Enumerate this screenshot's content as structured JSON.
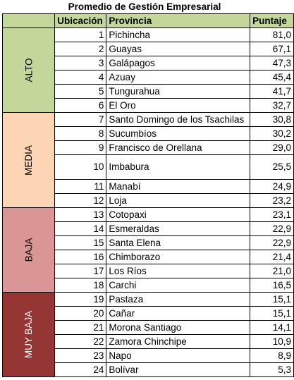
{
  "title": "Promedio de Gestión Empresarial",
  "headers": {
    "ubicacion": "Ubicación",
    "provincia": "Provincia",
    "puntaje": "Puntaje"
  },
  "groups": {
    "alto": "ALTO",
    "media": "MEDIA",
    "baja": "BAJA",
    "muy_baja": "MUY BAJA"
  },
  "colors": {
    "header": "#c4d79b",
    "alto": "#c4d79b",
    "media": "#fcd5b4",
    "baja": "#da9694",
    "muy_baja": "#963634"
  },
  "rows": [
    {
      "rank": "1",
      "provincia": "Pichincha",
      "puntaje": "81,0"
    },
    {
      "rank": "2",
      "provincia": "Guayas",
      "puntaje": "67,1"
    },
    {
      "rank": "3",
      "provincia": "Galápagos",
      "puntaje": "47,3"
    },
    {
      "rank": "4",
      "provincia": "Azuay",
      "puntaje": "45,4"
    },
    {
      "rank": "5",
      "provincia": "Tungurahua",
      "puntaje": "41,7"
    },
    {
      "rank": "6",
      "provincia": "El Oro",
      "puntaje": "32,7"
    },
    {
      "rank": "7",
      "provincia": "Santo Domingo de los Tsachilas",
      "puntaje": "30,8"
    },
    {
      "rank": "8",
      "provincia": "Sucumbíos",
      "puntaje": "30,2"
    },
    {
      "rank": "9",
      "provincia": "Francisco de Orellana",
      "puntaje": "29,0"
    },
    {
      "rank": "10",
      "provincia": "Imbabura",
      "puntaje": "25,5"
    },
    {
      "rank": "11",
      "provincia": "Manabí",
      "puntaje": "24,9"
    },
    {
      "rank": "12",
      "provincia": "Loja",
      "puntaje": "23,2"
    },
    {
      "rank": "13",
      "provincia": "Cotopaxi",
      "puntaje": "23,1"
    },
    {
      "rank": "14",
      "provincia": "Esmeraldas",
      "puntaje": "22,9"
    },
    {
      "rank": "15",
      "provincia": "Santa Elena",
      "puntaje": "22,9"
    },
    {
      "rank": "16",
      "provincia": "Chimborazo",
      "puntaje": "21,4"
    },
    {
      "rank": "17",
      "provincia": "Los Ríos",
      "puntaje": "21,0"
    },
    {
      "rank": "18",
      "provincia": "Carchi",
      "puntaje": "16,5"
    },
    {
      "rank": "19",
      "provincia": "Pastaza",
      "puntaje": "15,1"
    },
    {
      "rank": "20",
      "provincia": "Cañar",
      "puntaje": "15,1"
    },
    {
      "rank": "21",
      "provincia": "Morona Santiago",
      "puntaje": "14,1"
    },
    {
      "rank": "22",
      "provincia": "Zamora Chinchipe",
      "puntaje": "10,9"
    },
    {
      "rank": "23",
      "provincia": "Napo",
      "puntaje": "8,9"
    },
    {
      "rank": "24",
      "provincia": "Bolívar",
      "puntaje": "5,3"
    }
  ]
}
